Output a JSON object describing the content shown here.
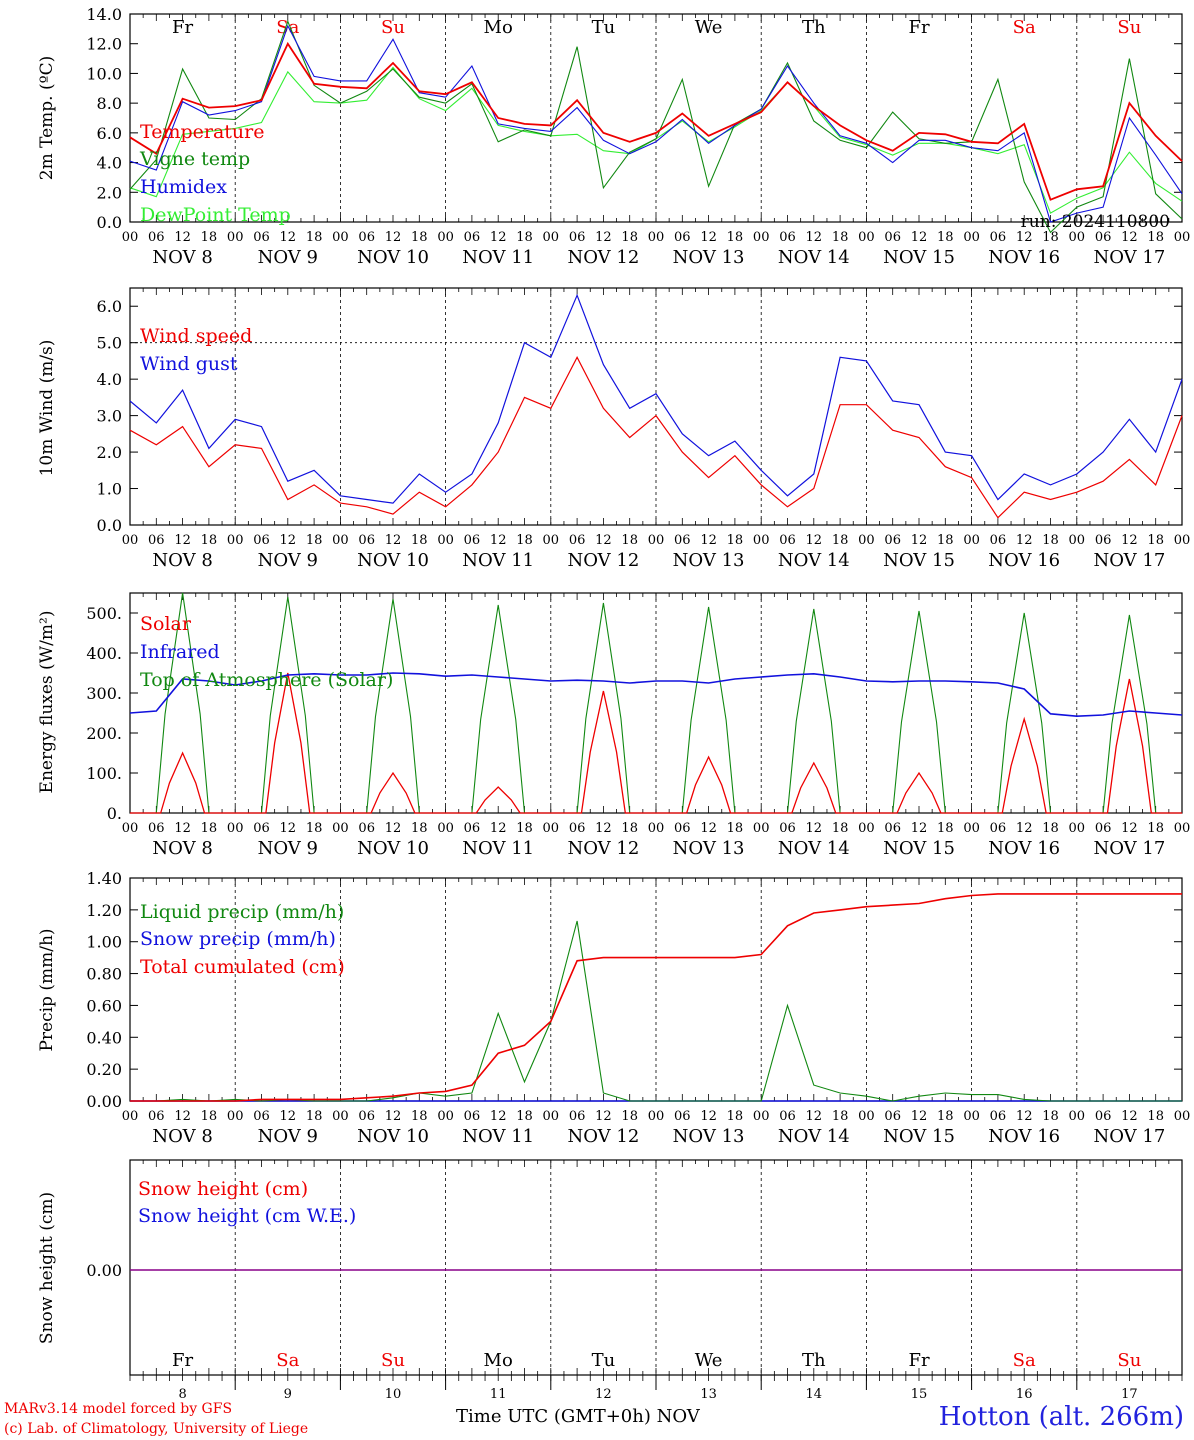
{
  "colors": {
    "red": "#ee0000",
    "green": "#118811",
    "blue": "#1111dd",
    "lightgreen": "#33ee33",
    "purple": "#880088",
    "weekend": "#ee0000",
    "weekday": "#000000"
  },
  "days": [
    "Fr",
    "Sa",
    "Su",
    "Mo",
    "Tu",
    "We",
    "Th",
    "Fr",
    "Sa",
    "Su"
  ],
  "weekend": [
    false,
    true,
    true,
    false,
    false,
    false,
    false,
    false,
    true,
    true
  ],
  "dates": [
    "NOV  8",
    "NOV  9",
    "NOV 10",
    "NOV 11",
    "NOV 12",
    "NOV 13",
    "NOV 14",
    "NOV 15",
    "NOV 16",
    "NOV 17"
  ],
  "hour_ticks": [
    "00",
    "06",
    "12",
    "18"
  ],
  "bottom_day_numbers": [
    "8",
    "9",
    "10",
    "11",
    "12",
    "13",
    "14",
    "15",
    "16",
    "17"
  ],
  "footer": {
    "credit_line1": "MARv3.14 model forced by GFS",
    "credit_line2": "(c) Lab. of Climatology, University of Liege",
    "xaxis_title": "Time UTC (GMT+0h) NOV",
    "station": "Hotton (alt. 266m)"
  },
  "chart_data": [
    {
      "type": "line",
      "ylabel": "2m Temp. (ºC)",
      "ylim": [
        0,
        14
      ],
      "yticks": [
        "0.0",
        "2.0",
        "4.0",
        "6.0",
        "8.0",
        "10.0",
        "12.0",
        "14.0"
      ],
      "annotation": "run: 2024110800",
      "x_hours": [
        0,
        6,
        12,
        18,
        24,
        30,
        36,
        42,
        48,
        54,
        60,
        66,
        72,
        78,
        84,
        90,
        96,
        102,
        108,
        114,
        120,
        126,
        132,
        138,
        144,
        150,
        156,
        162,
        168,
        174,
        180,
        186,
        192,
        198,
        204,
        210,
        216,
        222,
        228,
        234,
        240
      ],
      "series": [
        {
          "name": "Temperature",
          "color": "red",
          "values": [
            5.7,
            4.6,
            8.3,
            7.7,
            7.8,
            8.2,
            12.0,
            9.3,
            9.1,
            9.0,
            10.7,
            8.8,
            8.6,
            9.4,
            7.0,
            6.6,
            6.5,
            8.2,
            6.0,
            5.4,
            6.0,
            7.3,
            5.8,
            6.6,
            7.4,
            9.4,
            7.8,
            6.5,
            5.5,
            4.8,
            6.0,
            5.9,
            5.4,
            5.3,
            6.6,
            1.5,
            2.2,
            2.4,
            8.0,
            5.8,
            4.1
          ]
        },
        {
          "name": "Vigne temp",
          "color": "green",
          "values": [
            2.2,
            4.2,
            10.3,
            7.0,
            6.9,
            8.3,
            13.5,
            9.2,
            8.0,
            8.8,
            10.3,
            8.4,
            8.0,
            9.3,
            5.4,
            6.2,
            5.8,
            11.8,
            2.3,
            4.7,
            5.6,
            9.6,
            2.4,
            6.6,
            7.6,
            10.7,
            6.8,
            5.5,
            5.0,
            7.4,
            5.6,
            5.3,
            5.4,
            9.6,
            2.7,
            -0.7,
            1.0,
            1.7,
            11.0,
            1.9,
            0.2
          ]
        },
        {
          "name": "Humidex",
          "color": "blue",
          "values": [
            4.1,
            3.5,
            8.1,
            7.2,
            7.5,
            8.1,
            13.2,
            9.8,
            9.5,
            9.5,
            12.3,
            8.7,
            8.4,
            10.5,
            6.6,
            6.3,
            6.1,
            7.7,
            5.5,
            4.6,
            5.4,
            6.9,
            5.3,
            6.5,
            7.6,
            10.5,
            8.0,
            5.8,
            5.3,
            4.0,
            5.5,
            5.5,
            5.0,
            4.8,
            6.0,
            0.0,
            0.6,
            1.0,
            7.0,
            4.5,
            1.9
          ]
        },
        {
          "name": "DewPoint Temp",
          "color": "lightgreen",
          "values": [
            2.3,
            1.7,
            5.9,
            6.1,
            6.3,
            6.7,
            10.1,
            8.1,
            8.0,
            8.2,
            10.4,
            8.3,
            7.5,
            9.0,
            6.5,
            6.1,
            5.8,
            5.9,
            4.8,
            4.6,
            5.6,
            6.8,
            5.4,
            6.4,
            7.5,
            9.4,
            7.8,
            5.7,
            5.2,
            4.5,
            5.3,
            5.3,
            5.0,
            4.6,
            5.2,
            0.6,
            1.6,
            2.3,
            4.7,
            2.6,
            1.4
          ]
        }
      ]
    },
    {
      "type": "line",
      "ylabel": "10m Wind (m/s)",
      "ylim": [
        0,
        6.5
      ],
      "yticks": [
        "0.0",
        "1.0",
        "2.0",
        "3.0",
        "4.0",
        "5.0",
        "6.0"
      ],
      "x_hours": [
        0,
        6,
        12,
        18,
        24,
        30,
        36,
        42,
        48,
        54,
        60,
        66,
        72,
        78,
        84,
        90,
        96,
        102,
        108,
        114,
        120,
        126,
        132,
        138,
        144,
        150,
        156,
        162,
        168,
        174,
        180,
        186,
        192,
        198,
        204,
        210,
        216,
        222,
        228,
        234,
        240
      ],
      "series": [
        {
          "name": "Wind speed",
          "color": "red",
          "values": [
            2.6,
            2.2,
            2.7,
            1.6,
            2.2,
            2.1,
            0.7,
            1.1,
            0.6,
            0.5,
            0.3,
            0.9,
            0.5,
            1.1,
            2.0,
            3.5,
            3.2,
            4.6,
            3.2,
            2.4,
            3.0,
            2.0,
            1.3,
            1.9,
            1.1,
            0.5,
            1.0,
            3.3,
            3.3,
            2.6,
            2.4,
            1.6,
            1.3,
            0.2,
            0.9,
            0.7,
            0.9,
            1.2,
            1.8,
            1.1,
            3.0
          ]
        },
        {
          "name": "Wind gust",
          "color": "blue",
          "values": [
            3.4,
            2.8,
            3.7,
            2.1,
            2.9,
            2.7,
            1.2,
            1.5,
            0.8,
            0.7,
            0.6,
            1.4,
            0.9,
            1.4,
            2.8,
            5.0,
            4.6,
            6.3,
            4.4,
            3.2,
            3.6,
            2.5,
            1.9,
            2.3,
            1.5,
            0.8,
            1.4,
            4.6,
            4.5,
            3.4,
            3.3,
            2.0,
            1.9,
            0.7,
            1.4,
            1.1,
            1.4,
            2.0,
            2.9,
            2.0,
            4.0
          ]
        }
      ]
    },
    {
      "type": "line",
      "ylabel": "Energy fluxes (W/m²)",
      "ylim": [
        0,
        550
      ],
      "yticks": [
        "0.",
        "100.",
        "200.",
        "300.",
        "400.",
        "500."
      ],
      "day_peaks": {
        "Solar": [
          150,
          350,
          100,
          65,
          305,
          140,
          125,
          100,
          235,
          335
        ],
        "Top of Atmosphere (Solar)": [
          550,
          540,
          535,
          520,
          525,
          515,
          510,
          505,
          500,
          495
        ]
      },
      "infrared_x_hours": [
        0,
        6,
        12,
        18,
        24,
        30,
        36,
        42,
        48,
        54,
        60,
        66,
        72,
        78,
        84,
        90,
        96,
        102,
        108,
        114,
        120,
        126,
        132,
        138,
        144,
        150,
        156,
        162,
        168,
        174,
        180,
        186,
        192,
        198,
        204,
        210,
        216,
        222,
        228,
        234,
        240
      ],
      "series": [
        {
          "name": "Solar",
          "color": "red"
        },
        {
          "name": "Infrared",
          "color": "blue",
          "values": [
            250,
            255,
            335,
            330,
            320,
            330,
            345,
            348,
            345,
            345,
            350,
            348,
            342,
            345,
            340,
            335,
            330,
            332,
            330,
            325,
            330,
            330,
            325,
            335,
            340,
            345,
            348,
            340,
            330,
            328,
            330,
            330,
            328,
            325,
            310,
            248,
            242,
            245,
            255,
            250,
            245
          ]
        },
        {
          "name": "Top of Atmosphere (Solar)",
          "color": "green"
        }
      ]
    },
    {
      "type": "line",
      "ylabel": "Precip (mm/h)",
      "ylim": [
        0,
        1.4
      ],
      "yticks": [
        "0.00",
        "0.20",
        "0.40",
        "0.60",
        "0.80",
        "1.00",
        "1.20",
        "1.40"
      ],
      "x_hours": [
        0,
        6,
        12,
        18,
        24,
        30,
        36,
        42,
        48,
        54,
        60,
        66,
        72,
        78,
        84,
        90,
        96,
        102,
        108,
        114,
        120,
        126,
        132,
        138,
        144,
        150,
        156,
        162,
        168,
        174,
        180,
        186,
        192,
        198,
        204,
        210,
        216,
        222,
        228,
        234,
        240
      ],
      "series": [
        {
          "name": "Liquid precip (mm/h)",
          "color": "green",
          "values": [
            0,
            0,
            0.01,
            0,
            0.01,
            0,
            0.01,
            0,
            0,
            0,
            0.02,
            0.05,
            0.03,
            0.05,
            0.55,
            0.12,
            0.5,
            1.13,
            0.05,
            0,
            0,
            0,
            0,
            0,
            0,
            0.6,
            0.1,
            0.05,
            0.03,
            0,
            0.03,
            0.05,
            0.04,
            0.04,
            0.01,
            0,
            0,
            0,
            0,
            0,
            0
          ]
        },
        {
          "name": "Snow precip (mm/h)",
          "color": "blue",
          "values": [
            0,
            0,
            0,
            0,
            0,
            0,
            0,
            0,
            0,
            0,
            0,
            0,
            0,
            0,
            0,
            0,
            0,
            0,
            0,
            0,
            0,
            0,
            0,
            0,
            0,
            0,
            0,
            0,
            0,
            0,
            0,
            0,
            0,
            0,
            0,
            0,
            0,
            0,
            0,
            0,
            0
          ]
        },
        {
          "name": "Total cumulated (cm)",
          "color": "red",
          "values": [
            0,
            0,
            0,
            0,
            0,
            0.01,
            0.01,
            0.01,
            0.01,
            0.02,
            0.03,
            0.05,
            0.06,
            0.1,
            0.3,
            0.35,
            0.5,
            0.88,
            0.9,
            0.9,
            0.9,
            0.9,
            0.9,
            0.9,
            0.92,
            1.1,
            1.18,
            1.2,
            1.22,
            1.23,
            1.24,
            1.27,
            1.29,
            1.3,
            1.3,
            1.3,
            1.3,
            1.3,
            1.3,
            1.3,
            1.3
          ]
        }
      ]
    },
    {
      "type": "line",
      "ylabel": "Snow height (cm)",
      "ylim": [
        -1,
        1
      ],
      "yticks": [
        "0.00"
      ],
      "x_hours": [
        0,
        240
      ],
      "series": [
        {
          "name": "Snow height (cm)",
          "color": "red",
          "values": [
            0,
            0
          ]
        },
        {
          "name": "Snow height (cm W.E.)",
          "color": "blue",
          "values": [
            0,
            0
          ]
        }
      ]
    }
  ]
}
